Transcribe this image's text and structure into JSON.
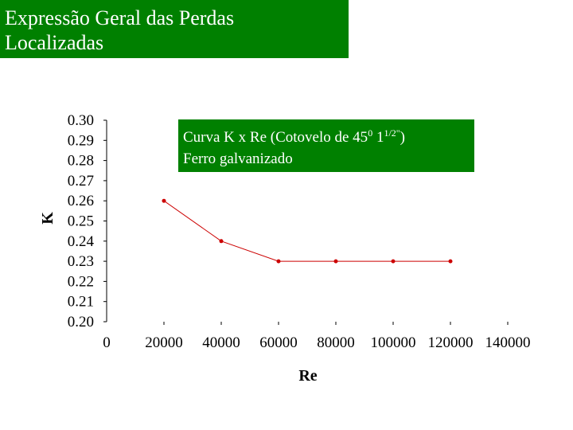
{
  "slide": {
    "title_line1": "Expressão Geral das Perdas",
    "title_line2": "Localizadas",
    "title_bg": "#008000"
  },
  "annotation": {
    "line1_text": "Curva K x Re (Cotovelo de 45",
    "line1_sup1": "0",
    "line1_mid": " 1",
    "line1_sup2": "1/2\"",
    "line1_end": ")",
    "line2": "Ferro galvanizado"
  },
  "chart_data": {
    "type": "line",
    "xlabel": "Re",
    "ylabel": "K",
    "xlim": [
      0,
      140000
    ],
    "ylim": [
      0.2,
      0.3
    ],
    "x_ticks": [
      "0",
      "20000",
      "40000",
      "60000",
      "80000",
      "100000",
      "120000",
      "140000"
    ],
    "y_ticks": [
      "0.30",
      "0.29",
      "0.28",
      "0.27",
      "0.26",
      "0.25",
      "0.24",
      "0.23",
      "0.22",
      "0.21",
      "0.20"
    ],
    "series": [
      {
        "color": "#cc0000",
        "x": [
          20000,
          40000,
          60000,
          80000,
          100000,
          120000
        ],
        "y": [
          0.26,
          0.24,
          0.23,
          0.23,
          0.23,
          0.23
        ]
      }
    ]
  }
}
